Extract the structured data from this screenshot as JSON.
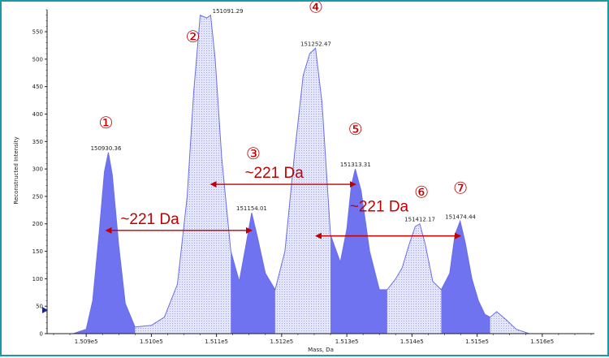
{
  "chart_data": {
    "type": "area",
    "xlabel": "Mass, Da",
    "ylabel": "Reconstructed Intensity",
    "xlim": [
      150840,
      151680
    ],
    "ylim": [
      0,
      590
    ],
    "xticks": [
      150900,
      151000,
      151100,
      151200,
      151300,
      151400,
      151500,
      151600
    ],
    "xtick_labels": [
      "1.509e5",
      "1.510e5",
      "1.511e5",
      "1.512e5",
      "1.513e5",
      "1.514e5",
      "1.515e5",
      "1.516e5"
    ],
    "yticks": [
      0,
      50,
      100,
      150,
      200,
      250,
      300,
      350,
      400,
      450,
      500,
      550
    ],
    "ytick_labels": [
      "0",
      "50",
      "100",
      "150",
      "200",
      "250",
      "300",
      "350",
      "400",
      "450",
      "500",
      "550"
    ],
    "profile": {
      "x": [
        150840,
        150880,
        150900,
        150910,
        150920,
        150928,
        150934,
        150940,
        150950,
        150960,
        150975,
        150990,
        151000,
        151020,
        151040,
        151055,
        151065,
        151075,
        151085,
        151091,
        151098,
        151108,
        151122,
        151135,
        151145,
        151154,
        151163,
        151175,
        151190,
        151205,
        151220,
        151233,
        151243,
        151252,
        151262,
        151275,
        151290,
        151300,
        151307,
        151313,
        151322,
        151335,
        151350,
        151362,
        151375,
        151385,
        151395,
        151405,
        151412,
        151420,
        151432,
        151445,
        151458,
        151466,
        151474,
        151482,
        151492,
        151502,
        151512,
        151520,
        151530,
        151545,
        151560,
        151580,
        151620,
        151680
      ],
      "y": [
        0,
        0,
        8,
        60,
        185,
        295,
        330,
        290,
        160,
        55,
        12,
        14,
        15,
        30,
        90,
        250,
        440,
        580,
        575,
        580,
        500,
        320,
        150,
        95,
        160,
        220,
        175,
        110,
        80,
        150,
        330,
        470,
        510,
        520,
        420,
        180,
        130,
        190,
        270,
        300,
        260,
        150,
        80,
        80,
        100,
        120,
        160,
        195,
        200,
        165,
        95,
        80,
        110,
        180,
        205,
        165,
        100,
        60,
        35,
        30,
        40,
        25,
        8,
        0,
        0,
        0
      ]
    },
    "peaks": [
      {
        "index": "①",
        "mass": "150930.36",
        "value": 330
      },
      {
        "index": "②",
        "mass": "151091.29",
        "value": 580
      },
      {
        "index": "③",
        "mass": "151154.01",
        "value": 220
      },
      {
        "index": "④",
        "mass": "151252.47",
        "value": 520
      },
      {
        "index": "⑤",
        "mass": "151313.31",
        "value": 300
      },
      {
        "index": "⑥",
        "mass": "151412.17",
        "value": 200
      },
      {
        "index": "⑦",
        "mass": "151474.44",
        "value": 205
      }
    ],
    "shaded_regions": [
      {
        "x0": 150840,
        "x1": 150975,
        "color": "#6f73f0"
      },
      {
        "x0": 151122,
        "x1": 151190,
        "color": "#6f73f0"
      },
      {
        "x0": 151275,
        "x1": 151362,
        "color": "#6f73f0"
      },
      {
        "x0": 151445,
        "x1": 151520,
        "color": "#6f73f0"
      }
    ],
    "annotations": [
      {
        "label": "~221 Da",
        "x0": 150930.36,
        "x1": 151154.01,
        "y": 188
      },
      {
        "label": "~221 Da",
        "x0": 151091.29,
        "x1": 151313.31,
        "y": 272
      },
      {
        "label": "~221 Da",
        "x0": 151252.47,
        "x1": 151474.44,
        "y": 178
      }
    ],
    "colors": {
      "light_fill": "#dde0fb",
      "dark_fill": "#6f73f0",
      "outline": "#6a6ee8",
      "arrow": "#c00000",
      "frame": "#1a9aa8"
    }
  }
}
